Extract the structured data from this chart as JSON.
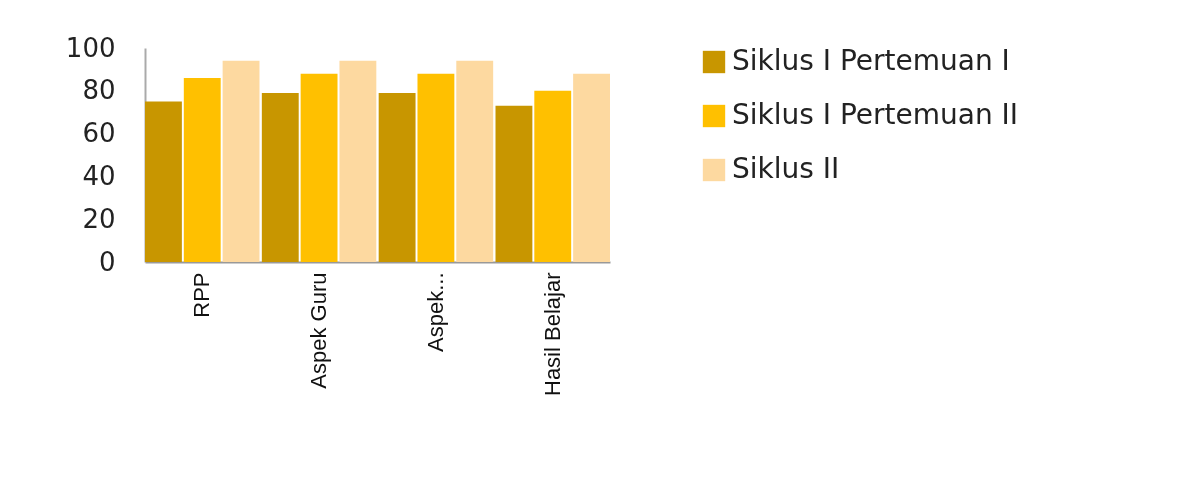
{
  "chart_data": {
    "type": "bar",
    "categories": [
      "RPP",
      "Aspek Guru",
      "Aspek...",
      "Hasil Belajar"
    ],
    "series": [
      {
        "name": "Siklus I Pertemuan I",
        "color": "#c89600",
        "values": [
          75,
          79,
          79,
          73
        ]
      },
      {
        "name": "Siklus I Pertemuan II",
        "color": "#ffc000",
        "values": [
          86,
          88,
          88,
          80
        ]
      },
      {
        "name": "Siklus II",
        "color": "#fdd9a0",
        "values": [
          94,
          94,
          94,
          88
        ]
      }
    ],
    "ylim": [
      0,
      100
    ],
    "yticks": [
      0,
      20,
      40,
      60,
      80,
      100
    ],
    "grid": false,
    "legend": "right"
  }
}
